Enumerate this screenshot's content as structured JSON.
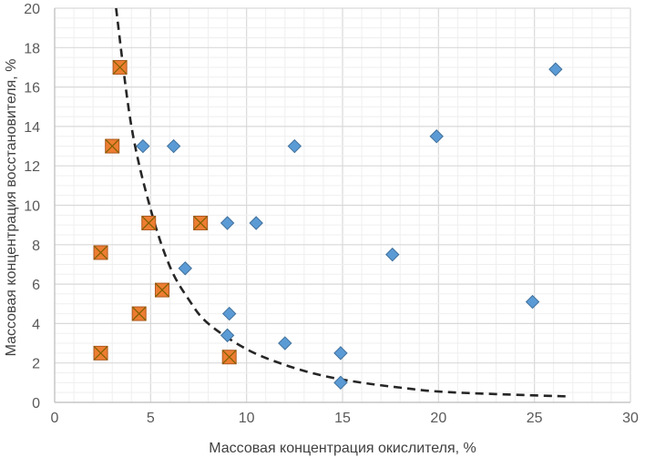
{
  "chart_data": {
    "type": "scatter",
    "title": "",
    "xlabel": "Массовая концентрация окислителя, %",
    "ylabel": "Массовая концентрация восстановителя, %",
    "xlim": [
      0,
      30
    ],
    "ylim": [
      0,
      20
    ],
    "xticks": [
      0,
      5,
      10,
      15,
      20,
      25,
      30
    ],
    "yticks": [
      0,
      2,
      4,
      6,
      8,
      10,
      12,
      14,
      16,
      18,
      20
    ],
    "x_tick_labels": [
      "0",
      "5",
      "10",
      "15",
      "20",
      "25",
      "30"
    ],
    "y_tick_labels": [
      "0",
      "2",
      "4",
      "6",
      "8",
      "10",
      "12",
      "14",
      "16",
      "18",
      "20"
    ],
    "grid": true,
    "series": [
      {
        "name": "diamond-points",
        "marker": "diamond",
        "color": "#5b9bd5",
        "points": [
          {
            "x": 4.6,
            "y": 13.0
          },
          {
            "x": 6.2,
            "y": 13.0
          },
          {
            "x": 12.5,
            "y": 13.0
          },
          {
            "x": 19.9,
            "y": 13.5
          },
          {
            "x": 26.1,
            "y": 16.9
          },
          {
            "x": 9.0,
            "y": 9.1
          },
          {
            "x": 10.5,
            "y": 9.1
          },
          {
            "x": 17.6,
            "y": 7.5
          },
          {
            "x": 6.8,
            "y": 6.8
          },
          {
            "x": 24.9,
            "y": 5.1
          },
          {
            "x": 9.1,
            "y": 4.5
          },
          {
            "x": 9.0,
            "y": 3.4
          },
          {
            "x": 12.0,
            "y": 3.0
          },
          {
            "x": 14.9,
            "y": 2.5
          },
          {
            "x": 14.9,
            "y": 1.0
          }
        ]
      },
      {
        "name": "square-points",
        "marker": "square-x",
        "color": "#ed7d31",
        "points": [
          {
            "x": 3.4,
            "y": 17.0
          },
          {
            "x": 3.0,
            "y": 13.0
          },
          {
            "x": 4.9,
            "y": 9.1
          },
          {
            "x": 7.6,
            "y": 9.1
          },
          {
            "x": 2.4,
            "y": 7.6
          },
          {
            "x": 5.6,
            "y": 5.7
          },
          {
            "x": 4.4,
            "y": 4.5
          },
          {
            "x": 2.4,
            "y": 2.5
          },
          {
            "x": 9.1,
            "y": 2.3
          }
        ]
      },
      {
        "name": "boundary-curve",
        "marker": "dashed-line",
        "color": "#262626",
        "points": [
          {
            "x": 3.2,
            "y": 20.0
          },
          {
            "x": 4.0,
            "y": 14.0
          },
          {
            "x": 5.0,
            "y": 9.8
          },
          {
            "x": 6.0,
            "y": 6.9
          },
          {
            "x": 7.0,
            "y": 5.2
          },
          {
            "x": 8.0,
            "y": 4.0
          },
          {
            "x": 10.0,
            "y": 2.7
          },
          {
            "x": 12.0,
            "y": 1.9
          },
          {
            "x": 14.0,
            "y": 1.35
          },
          {
            "x": 16.0,
            "y": 1.0
          },
          {
            "x": 18.0,
            "y": 0.75
          },
          {
            "x": 20.0,
            "y": 0.55
          },
          {
            "x": 23.0,
            "y": 0.42
          },
          {
            "x": 26.8,
            "y": 0.3
          }
        ]
      }
    ]
  }
}
